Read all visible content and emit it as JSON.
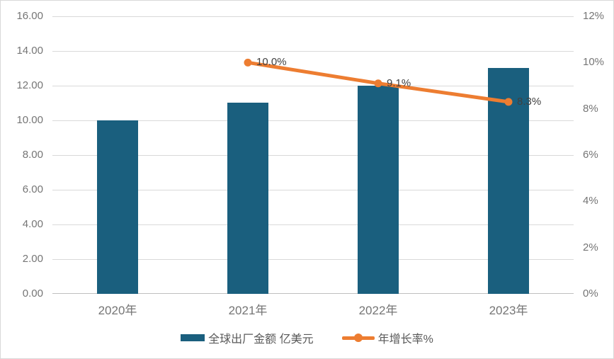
{
  "chart_data": {
    "type": "bar",
    "title": "",
    "categories": [
      "2020年",
      "2021年",
      "2022年",
      "2023年"
    ],
    "series": [
      {
        "name": "全球出厂金额 亿美元",
        "type": "bar",
        "axis": "left",
        "color": "#1A5F7E",
        "values": [
          10.0,
          11.0,
          12.0,
          13.0
        ]
      },
      {
        "name": "年增长率%",
        "type": "line",
        "axis": "right",
        "color": "#ED7D31",
        "values": [
          null,
          10.0,
          9.1,
          8.3
        ],
        "data_labels": [
          null,
          "10.0%",
          "9.1%",
          "8.3%"
        ]
      }
    ],
    "left_axis": {
      "min": 0,
      "max": 16,
      "step": 2,
      "tick_labels": [
        "16.00",
        "14.00",
        "12.00",
        "10.00",
        "8.00",
        "6.00",
        "4.00",
        "2.00",
        "0.00"
      ]
    },
    "right_axis": {
      "min": 0,
      "max": 12,
      "step": 2,
      "tick_labels": [
        "12%",
        "10%",
        "8%",
        "6%",
        "4%",
        "2%",
        "0%"
      ]
    },
    "grid": true,
    "legend_position": "bottom",
    "legend": [
      "全球出厂金额 亿美元",
      "年增长率%"
    ]
  },
  "colors": {
    "bar": "#1A5F7E",
    "line": "#ED7D31",
    "grid": "#D9D9D9",
    "zero_line": "#BFBFBF",
    "axis_text": "#757575",
    "data_label_text": "#404040",
    "legend_text": "#595959",
    "background": "#FFFFFF",
    "border": "#D9D9D9"
  }
}
